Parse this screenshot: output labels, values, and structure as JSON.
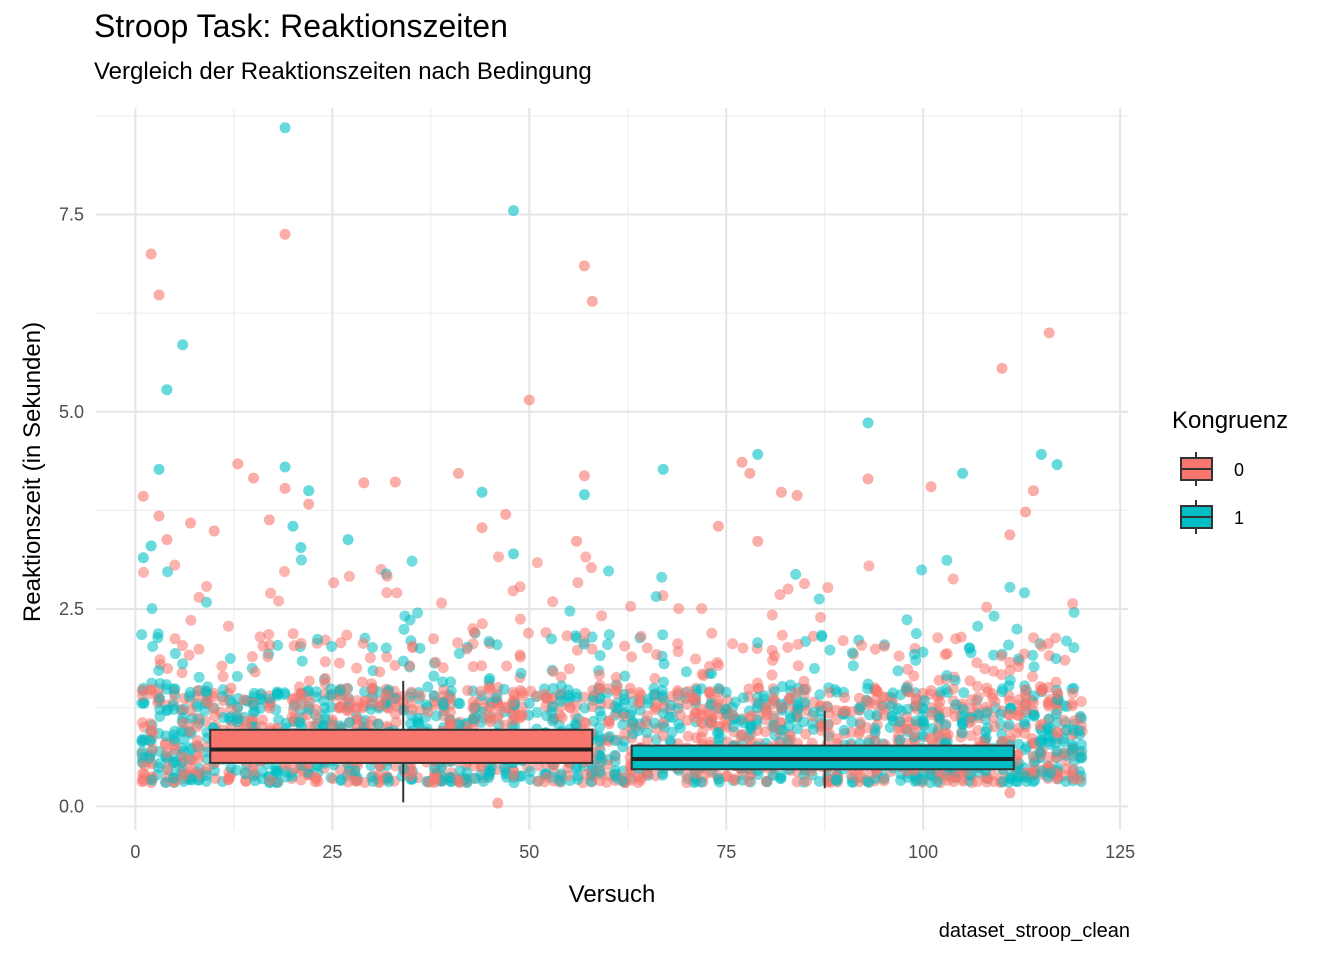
{
  "chart_data": {
    "type": "scatter",
    "title": "Stroop Task: Reaktionszeiten",
    "subtitle": "Vergleich der Reaktionszeiten nach Bedingung",
    "caption": "dataset_stroop_clean",
    "xlabel": "Versuch",
    "ylabel": "Reaktionszeit (in Sekunden)",
    "xlim": [
      -5,
      126
    ],
    "ylim": [
      -0.3,
      8.85
    ],
    "x_ticks": [
      0,
      25,
      50,
      75,
      100,
      125
    ],
    "x_tick_labels": [
      "0",
      "25",
      "50",
      "75",
      "100",
      "125"
    ],
    "y_ticks": [
      0,
      2.5,
      5,
      7.5
    ],
    "y_tick_labels": [
      "0.0",
      "2.5",
      "5.0",
      "7.5"
    ],
    "grid": true,
    "legend": {
      "title": "Kongruenz",
      "placement": "right",
      "entries": [
        {
          "label": "0",
          "color": "#F8766D"
        },
        {
          "label": "1",
          "color": "#00BFC4"
        }
      ]
    },
    "series": [
      {
        "name": "0",
        "color": "#F8766D",
        "outliers": [
          [
            1,
            3.93
          ],
          [
            2,
            7.0
          ],
          [
            3,
            6.48
          ],
          [
            3,
            3.68
          ],
          [
            4,
            3.38
          ],
          [
            7,
            3.59
          ],
          [
            10,
            3.49
          ],
          [
            13,
            4.34
          ],
          [
            15,
            4.16
          ],
          [
            17,
            3.63
          ],
          [
            19,
            7.25
          ],
          [
            19,
            4.03
          ],
          [
            22,
            3.83
          ],
          [
            29,
            4.1
          ],
          [
            33,
            4.11
          ],
          [
            41,
            4.22
          ],
          [
            44,
            3.53
          ],
          [
            47,
            3.7
          ],
          [
            50,
            5.15
          ],
          [
            56,
            3.36
          ],
          [
            57,
            6.85
          ],
          [
            57,
            4.19
          ],
          [
            58,
            6.4
          ],
          [
            74,
            3.55
          ],
          [
            77,
            4.36
          ],
          [
            78,
            4.22
          ],
          [
            79,
            3.36
          ],
          [
            82,
            3.98
          ],
          [
            84,
            3.94
          ],
          [
            93,
            4.15
          ],
          [
            101,
            4.05
          ],
          [
            110,
            5.55
          ],
          [
            111,
            3.44
          ],
          [
            113,
            3.73
          ],
          [
            114,
            4.0
          ],
          [
            116,
            6.0
          ],
          [
            46,
            0.04
          ],
          [
            111,
            0.17
          ]
        ],
        "box": {
          "x_start": 9.5,
          "x_end": 58,
          "x_center": 34,
          "q1": 0.55,
          "median": 0.72,
          "q3": 0.97,
          "whisker_low": 0.05,
          "whisker_high": 1.59
        }
      },
      {
        "name": "1",
        "color": "#00BFC4",
        "outliers": [
          [
            19,
            8.6
          ],
          [
            48,
            7.55
          ],
          [
            6,
            5.85
          ],
          [
            4,
            5.28
          ],
          [
            3,
            4.27
          ],
          [
            19,
            4.3
          ],
          [
            22,
            4.0
          ],
          [
            44,
            3.98
          ],
          [
            57,
            3.95
          ],
          [
            67,
            4.27
          ],
          [
            79,
            4.46
          ],
          [
            93,
            4.86
          ],
          [
            105,
            4.22
          ],
          [
            115,
            4.46
          ],
          [
            117,
            4.33
          ],
          [
            20,
            3.55
          ],
          [
            48,
            3.2
          ],
          [
            1,
            3.15
          ],
          [
            2,
            3.3
          ],
          [
            21,
            3.28
          ],
          [
            27,
            3.38
          ]
        ],
        "box": {
          "x_start": 63,
          "x_end": 111.5,
          "x_center": 87.5,
          "q1": 0.47,
          "median": 0.6,
          "q3": 0.77,
          "whisker_low": 0.23,
          "whisker_high": 1.21
        }
      }
    ]
  }
}
